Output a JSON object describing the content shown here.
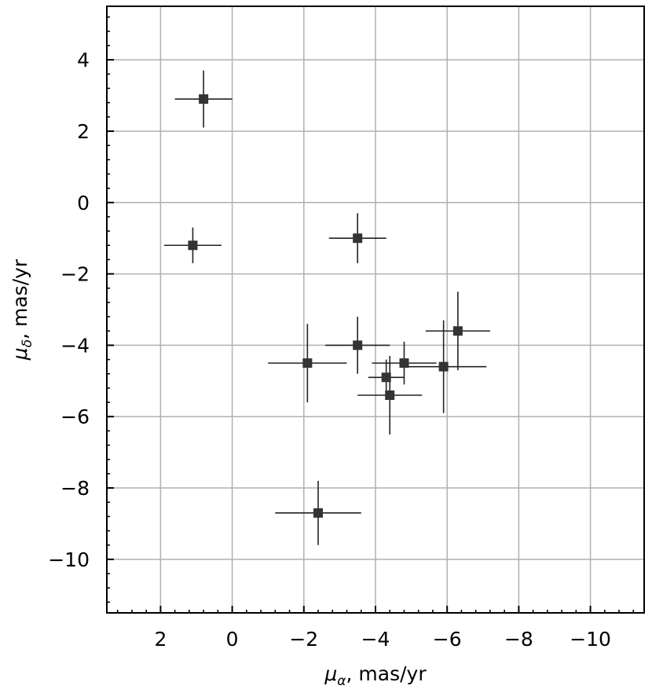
{
  "chart_data": {
    "type": "scatter",
    "title": "",
    "xlabel_symbol": "μ",
    "xlabel_sub": "α",
    "xlabel_unit": ", mas/yr",
    "ylabel_symbol": "μ",
    "ylabel_sub": "δ",
    "ylabel_unit": ", mas/yr",
    "xlim": [
      3.5,
      -11.5
    ],
    "ylim": [
      -11.5,
      5.5
    ],
    "x_inverted": true,
    "grid": true,
    "xticks": [
      2,
      0,
      -2,
      -4,
      -6,
      -8,
      -10
    ],
    "xtick_labels": [
      "2",
      "0",
      "−2",
      "−4",
      "−6",
      "−8",
      "−10"
    ],
    "yticks": [
      4,
      2,
      0,
      -2,
      -4,
      -6,
      -8,
      -10
    ],
    "ytick_labels": [
      "4",
      "2",
      "0",
      "−2",
      "−4",
      "−6",
      "−8",
      "−10"
    ],
    "marker_color": "#333333",
    "points": [
      {
        "x": 0.8,
        "y": 2.9,
        "xerr": 0.8,
        "yerr": 0.8
      },
      {
        "x": 1.1,
        "y": -1.2,
        "xerr": 0.8,
        "yerr": 0.5
      },
      {
        "x": -3.5,
        "y": -1.0,
        "xerr": 0.8,
        "yerr": 0.7
      },
      {
        "x": -3.5,
        "y": -4.0,
        "xerr": 0.9,
        "yerr": 0.8
      },
      {
        "x": -2.1,
        "y": -4.5,
        "xerr": 1.1,
        "yerr": 1.1
      },
      {
        "x": -4.3,
        "y": -4.9,
        "xerr": 0.5,
        "yerr": 0.5
      },
      {
        "x": -4.8,
        "y": -4.5,
        "xerr": 0.9,
        "yerr": 0.6
      },
      {
        "x": -4.4,
        "y": -5.4,
        "xerr": 0.9,
        "yerr": 1.1
      },
      {
        "x": -5.9,
        "y": -4.6,
        "xerr": 1.2,
        "yerr": 1.3
      },
      {
        "x": -6.3,
        "y": -3.6,
        "xerr": 0.9,
        "yerr": 1.1
      },
      {
        "x": -2.4,
        "y": -8.7,
        "xerr": 1.2,
        "yerr": 0.9
      }
    ]
  }
}
